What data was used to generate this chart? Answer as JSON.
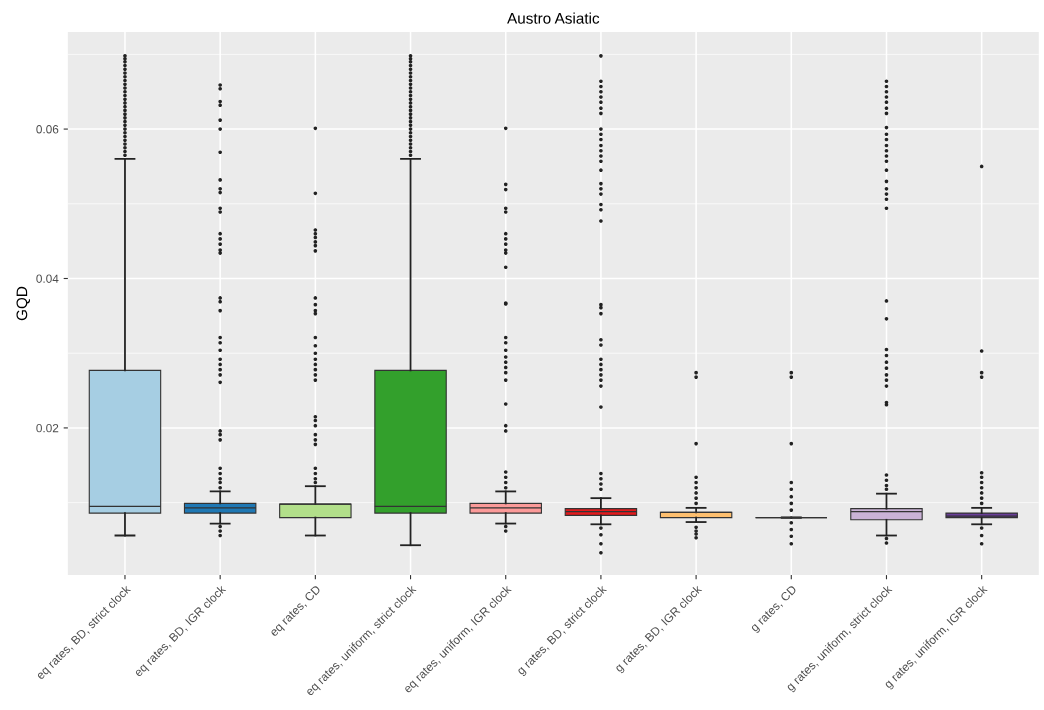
{
  "chart_data": {
    "type": "box",
    "title": "Austro Asiatic",
    "ylabel": "GQD",
    "categories": [
      "eq rates, BD, strict clock",
      "eq rates, BD, IGR clock",
      "eq rates, CD",
      "eq rates, uniform, strict clock",
      "eq rates, uniform, IGR clock",
      "g rates, BD, strict clock",
      "g rates, BD, IGR clock",
      "g rates, CD",
      "g rates, uniform, strict clock",
      "g rates, uniform, IGR clock"
    ],
    "colors": [
      "#a6cee3",
      "#1f78b4",
      "#b2df8a",
      "#33a02c",
      "#fb9a99",
      "#e31a1c",
      "#fdbf6f",
      "#333333",
      "#cab2d6",
      "#6a3d9a"
    ],
    "ylim": [
      0.0003,
      0.073
    ],
    "yticks": [
      0.02,
      0.04,
      0.06
    ],
    "grid": true,
    "boxes": [
      {
        "low": 0.0056,
        "q1": 0.0086,
        "median": 0.0095,
        "q3": 0.0277,
        "high": 0.056,
        "outliers": [
          0.0565,
          0.057,
          0.0575,
          0.058,
          0.0585,
          0.059,
          0.0595,
          0.06,
          0.0605,
          0.061,
          0.0615,
          0.062,
          0.0625,
          0.063,
          0.0635,
          0.064,
          0.0645,
          0.065,
          0.0655,
          0.066,
          0.0665,
          0.067,
          0.0675,
          0.068,
          0.0685,
          0.069,
          0.0694,
          0.0698
        ]
      },
      {
        "low": 0.0072,
        "q1": 0.0086,
        "median": 0.0093,
        "q3": 0.0099,
        "high": 0.0115,
        "outliers": [
          0.0659,
          0.0654,
          0.0637,
          0.0632,
          0.0612,
          0.06,
          0.0569,
          0.0532,
          0.052,
          0.0515,
          0.0494,
          0.0489,
          0.046,
          0.0453,
          0.0446,
          0.0438,
          0.0434,
          0.0374,
          0.0369,
          0.0357,
          0.0321,
          0.0314,
          0.0304,
          0.0292,
          0.0285,
          0.0278,
          0.0271,
          0.0261,
          0.0196,
          0.0191,
          0.0184,
          0.0146,
          0.0139,
          0.0132,
          0.0127,
          0.012,
          0.0068,
          0.0062,
          0.0056
        ]
      },
      {
        "low": 0.0056,
        "q1": 0.008,
        "median": 0.0098,
        "q3": 0.0098,
        "high": 0.0122,
        "outliers": [
          0.0601,
          0.0514,
          0.0465,
          0.046,
          0.0455,
          0.0449,
          0.0444,
          0.0437,
          0.0374,
          0.0365,
          0.0357,
          0.0353,
          0.0321,
          0.031,
          0.03,
          0.0292,
          0.0285,
          0.0278,
          0.0271,
          0.0264,
          0.0215,
          0.021,
          0.0203,
          0.0191,
          0.0184,
          0.0178,
          0.0146,
          0.0139,
          0.0132,
          0.0127
        ]
      },
      {
        "low": 0.0043,
        "q1": 0.0086,
        "median": 0.0095,
        "q3": 0.0277,
        "high": 0.056,
        "outliers": [
          0.0565,
          0.057,
          0.0575,
          0.058,
          0.0585,
          0.059,
          0.0595,
          0.06,
          0.0605,
          0.061,
          0.0615,
          0.062,
          0.0625,
          0.063,
          0.0635,
          0.064,
          0.0645,
          0.065,
          0.0655,
          0.066,
          0.0665,
          0.067,
          0.0675,
          0.068,
          0.0685,
          0.069,
          0.0694,
          0.0698
        ]
      },
      {
        "low": 0.0072,
        "q1": 0.0086,
        "median": 0.0093,
        "q3": 0.0099,
        "high": 0.0115,
        "outliers": [
          0.0601,
          0.0526,
          0.0519,
          0.0494,
          0.0489,
          0.046,
          0.0453,
          0.0446,
          0.0438,
          0.0434,
          0.0415,
          0.0367,
          0.0366,
          0.0321,
          0.0314,
          0.0304,
          0.0295,
          0.0288,
          0.0281,
          0.0274,
          0.0264,
          0.0232,
          0.0203,
          0.0196,
          0.0141,
          0.0134,
          0.0127,
          0.012,
          0.0068,
          0.0062
        ]
      },
      {
        "low": 0.0071,
        "q1": 0.0083,
        "median": 0.0088,
        "q3": 0.0092,
        "high": 0.0106,
        "outliers": [
          0.0698,
          0.0664,
          0.0657,
          0.065,
          0.0643,
          0.0636,
          0.0628,
          0.0621,
          0.06,
          0.0593,
          0.0586,
          0.0578,
          0.0571,
          0.0564,
          0.0557,
          0.0545,
          0.0527,
          0.052,
          0.0513,
          0.0499,
          0.0492,
          0.0477,
          0.0365,
          0.0361,
          0.0353,
          0.0318,
          0.0311,
          0.0292,
          0.0285,
          0.0278,
          0.0271,
          0.0264,
          0.0256,
          0.0228,
          0.0139,
          0.0132,
          0.0125,
          0.0118,
          0.0066,
          0.0057,
          0.0045,
          0.0033
        ]
      },
      {
        "low": 0.0074,
        "q1": 0.008,
        "median": 0.0087,
        "q3": 0.0087,
        "high": 0.0093,
        "outliers": [
          0.0274,
          0.0268,
          0.0179,
          0.0134,
          0.0127,
          0.012,
          0.0113,
          0.0106,
          0.0099,
          0.0067,
          0.0062,
          0.0058,
          0.0053
        ]
      },
      {
        "low": 0.008,
        "q1": 0.008,
        "median": 0.008,
        "q3": 0.008,
        "high": 0.008,
        "outliers": [
          0.0274,
          0.0268,
          0.0179,
          0.0127,
          0.0118,
          0.0108,
          0.0099,
          0.009,
          0.0073,
          0.0064,
          0.0055,
          0.0045
        ]
      },
      {
        "low": 0.0056,
        "q1": 0.0077,
        "median": 0.0088,
        "q3": 0.0092,
        "high": 0.0112,
        "outliers": [
          0.0664,
          0.0657,
          0.065,
          0.0643,
          0.0636,
          0.0628,
          0.0621,
          0.0602,
          0.0593,
          0.0586,
          0.0578,
          0.0571,
          0.0564,
          0.0557,
          0.0545,
          0.053,
          0.052,
          0.0513,
          0.0506,
          0.0494,
          0.037,
          0.0346,
          0.0305,
          0.0297,
          0.0288,
          0.028,
          0.0271,
          0.0264,
          0.0256,
          0.0234,
          0.0231,
          0.0137,
          0.013,
          0.0123,
          0.0118,
          0.0052,
          0.0046
        ]
      },
      {
        "low": 0.0071,
        "q1": 0.008,
        "median": 0.0082,
        "q3": 0.0086,
        "high": 0.0093,
        "outliers": [
          0.055,
          0.0303,
          0.0274,
          0.0268,
          0.014,
          0.0134,
          0.0127,
          0.012,
          0.0113,
          0.0106,
          0.0099,
          0.0066,
          0.0056,
          0.0045
        ]
      }
    ]
  }
}
